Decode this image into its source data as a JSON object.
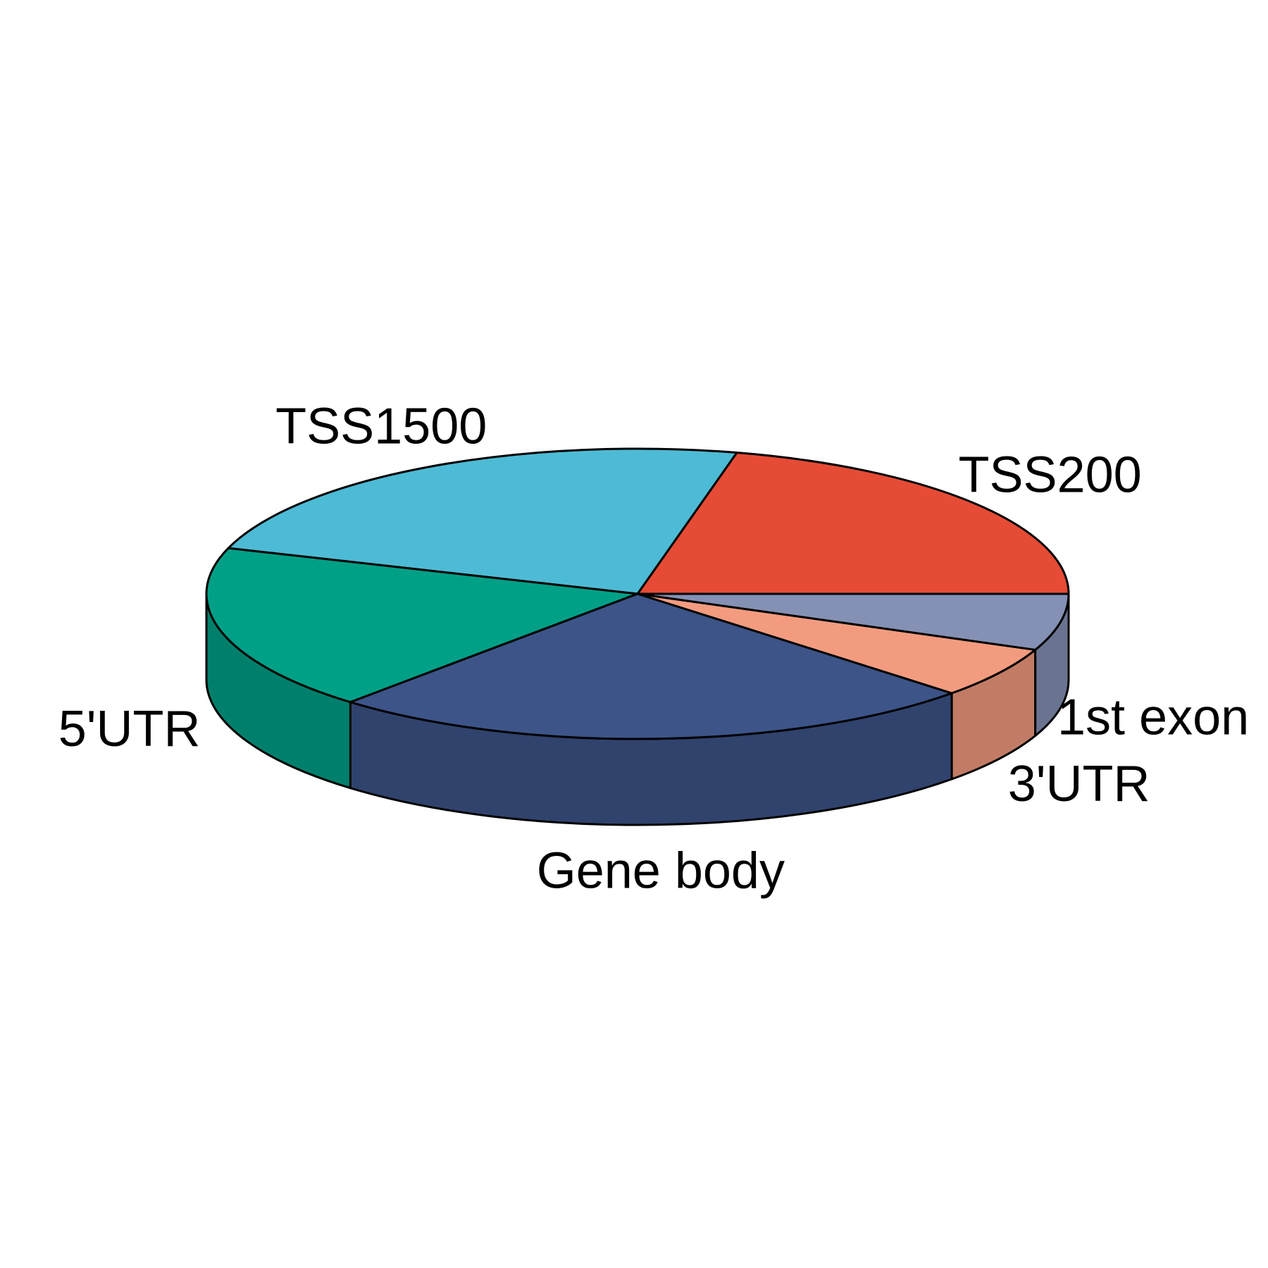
{
  "chart_data": {
    "type": "pie",
    "style": "3d",
    "title": "",
    "start_angle_deg": 0,
    "direction": "counterclockwise",
    "edge_color": "#000000",
    "slices": [
      {
        "label": "TSS200",
        "value": 21.3,
        "color": "#E64B35",
        "side_color": "#B83C2A"
      },
      {
        "label": "TSS1500",
        "value": 23.6,
        "color": "#4DBBD5",
        "side_color": "#3E96AA"
      },
      {
        "label": "5'UTR",
        "value": 18.5,
        "color": "#00A087",
        "side_color": "#00806C"
      },
      {
        "label": "Gene body",
        "value": 24.6,
        "color": "#3C5488",
        "side_color": "#30436D"
      },
      {
        "label": "3'UTR",
        "value": 5.7,
        "color": "#F39B7F",
        "side_color": "#C27C66"
      },
      {
        "label": "1st exon",
        "value": 6.3,
        "color": "#8491B4",
        "side_color": "#6A7490"
      }
    ]
  }
}
